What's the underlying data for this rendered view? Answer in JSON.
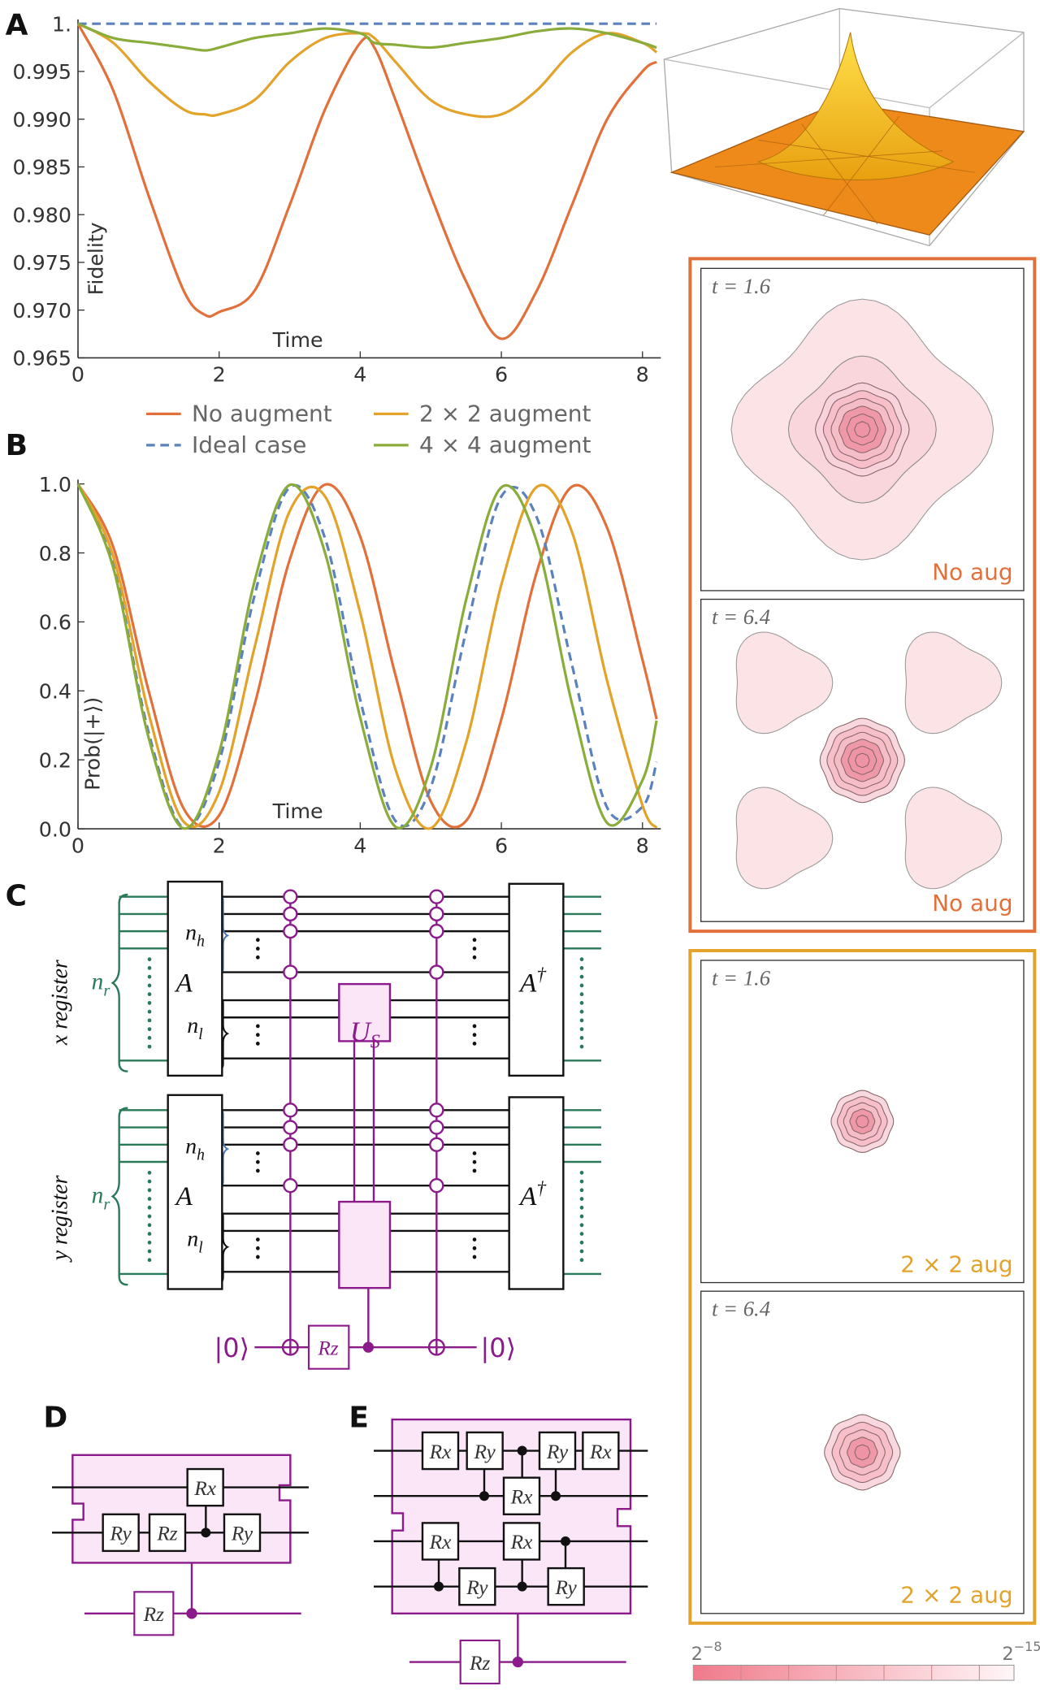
{
  "chart_data": [
    {
      "type": "line",
      "panel": "A",
      "y_label": "Fidelity",
      "x_label": "Time",
      "x": [
        0,
        0.5,
        1,
        1.5,
        1.8,
        2,
        2.5,
        3,
        3.5,
        4,
        4.2,
        4.5,
        5,
        5.5,
        6,
        6.5,
        7,
        7.5,
        8,
        8.2
      ],
      "series": [
        {
          "name": "No augment",
          "color": "#e2703a",
          "values": [
            1,
            0.993,
            0.982,
            0.972,
            0.9695,
            0.9698,
            0.972,
            0.981,
            0.991,
            0.998,
            0.9975,
            0.992,
            0.982,
            0.973,
            0.967,
            0.972,
            0.981,
            0.99,
            0.995,
            0.996
          ]
        },
        {
          "name": "Ideal case",
          "color": "#5b82bd",
          "dashed": true,
          "values": [
            1,
            1,
            1,
            1,
            1,
            1,
            1,
            1,
            1,
            1,
            1,
            1,
            1,
            1,
            1,
            1,
            1,
            1,
            1,
            1
          ]
        },
        {
          "name": "2 × 2 augment",
          "color": "#e3a32a",
          "values": [
            1,
            0.998,
            0.994,
            0.991,
            0.9905,
            0.9905,
            0.992,
            0.996,
            0.9985,
            0.999,
            0.9985,
            0.996,
            0.992,
            0.9905,
            0.9905,
            0.993,
            0.997,
            0.999,
            0.998,
            0.997
          ]
        },
        {
          "name": "4 × 4 augment",
          "color": "#8aac3a",
          "values": [
            1,
            0.9985,
            0.998,
            0.9975,
            0.9972,
            0.9975,
            0.9985,
            0.999,
            0.9995,
            0.999,
            0.998,
            0.9978,
            0.9975,
            0.998,
            0.9985,
            0.9992,
            0.9995,
            0.999,
            0.998,
            0.9975
          ]
        }
      ],
      "xlim": [
        0,
        8.26
      ],
      "ylim": [
        0.965,
        1
      ],
      "xticks": [
        0,
        2,
        4,
        6,
        8
      ],
      "yticks": [
        0.965,
        {
          "value": 0.97,
          "label": "0.970"
        },
        0.975,
        {
          "value": 0.98,
          "label": "0.980"
        },
        0.985,
        {
          "value": 0.99,
          "label": "0.990"
        },
        0.995,
        {
          "value": 1,
          "label": "1."
        }
      ]
    },
    {
      "type": "line",
      "panel": "B",
      "y_label": "Prob(|+⟩)",
      "x_label": "Time",
      "x": [
        0,
        0.5,
        1,
        1.5,
        2,
        2.5,
        3,
        3.5,
        4,
        4.5,
        5,
        5.5,
        6,
        6.5,
        7,
        7.5,
        8,
        8.2
      ],
      "series": [
        {
          "color": "#e2703a",
          "values": [
            1,
            0.817,
            0.401,
            0.058,
            0.039,
            0.358,
            0.78,
            0.998,
            0.847,
            0.445,
            0.08,
            0.023,
            0.318,
            0.743,
            0.992,
            0.872,
            0.49,
            0.318
          ]
        },
        {
          "color": "#5b82bd",
          "dashed": true,
          "values": [
            1,
            0.764,
            0.28,
            0.003,
            0.194,
            0.675,
            0.99,
            0.843,
            0.374,
            0.023,
            0.121,
            0.573,
            0.964,
            0.904,
            0.476,
            0.061,
            0.064,
            0.194
          ]
        },
        {
          "color": "#e3a32a",
          "values": [
            1,
            0.79,
            0.336,
            0.02,
            0.107,
            0.524,
            0.921,
            0.964,
            0.626,
            0.172,
            0.002,
            0.25,
            0.708,
            0.991,
            0.861,
            0.428,
            0.068,
            0.003
          ]
        },
        {
          "color": "#8aac3a",
          "values": [
            1,
            0.757,
            0.265,
            0.001,
            0.221,
            0.716,
            0.997,
            0.801,
            0.322,
            0.006,
            0.179,
            0.664,
            0.99,
            0.834,
            0.364,
            0.017,
            0.141,
            0.314
          ]
        }
      ],
      "xlim": [
        0,
        8.26
      ],
      "ylim": [
        0,
        1
      ],
      "xticks": [
        0,
        2,
        4,
        6,
        8
      ],
      "yticks": [
        {
          "value": 0,
          "label": "0.0"
        },
        0.2,
        0.4,
        0.6,
        0.8,
        {
          "value": 1,
          "label": "1.0"
        }
      ]
    }
  ],
  "contours": [
    {
      "color": "#e2703a",
      "panels": [
        {
          "time": "t = 1.6",
          "label": "No aug"
        },
        {
          "time": "t = 6.4",
          "label": "No aug"
        }
      ]
    },
    {
      "color": "#e3a32a",
      "panels": [
        {
          "time": "t = 1.6",
          "label": "2 × 2 aug"
        },
        {
          "time": "t = 6.4",
          "label": "2 × 2 aug"
        }
      ]
    }
  ],
  "colorbar": {
    "low": {
      "base": "2",
      "exponent": "−8"
    },
    "high": {
      "base": "2",
      "exponent": "−15"
    }
  },
  "circuit_c": {
    "panel": "C",
    "registers": [
      {
        "name": "x register",
        "size": {
          "symbol": "n",
          "sub": "r"
        },
        "high": {
          "symbol": "n",
          "sub": "h"
        },
        "low": {
          "symbol": "n",
          "sub": "l"
        },
        "unitary": "A",
        "inverse": {
          "symbol": "A",
          "sup": "†"
        }
      },
      {
        "name": "y register",
        "size": {
          "symbol": "n",
          "sub": "r"
        },
        "high": {
          "symbol": "n",
          "sub": "h"
        },
        "low": {
          "symbol": "n",
          "sub": "l"
        },
        "unitary": "A",
        "inverse": {
          "symbol": "A",
          "sup": "†"
        }
      }
    ],
    "gate": {
      "symbol": "U",
      "sub": "S"
    },
    "ancilla": {
      "gate": "Rz",
      "input": "|0⟩",
      "output": "|0⟩"
    }
  },
  "circuit_d": {
    "panel": "D",
    "gates": [
      "Rx",
      "Ry",
      "Rz",
      "Ry"
    ],
    "ancilla_gate": "Rz"
  },
  "circuit_e": {
    "panel": "E",
    "gates": [
      "Rx",
      "Ry",
      "Ry",
      "Rx",
      "Rx",
      "Rx",
      "Rx",
      "Ry",
      "Ry"
    ],
    "ancilla_gate": "Rz"
  }
}
